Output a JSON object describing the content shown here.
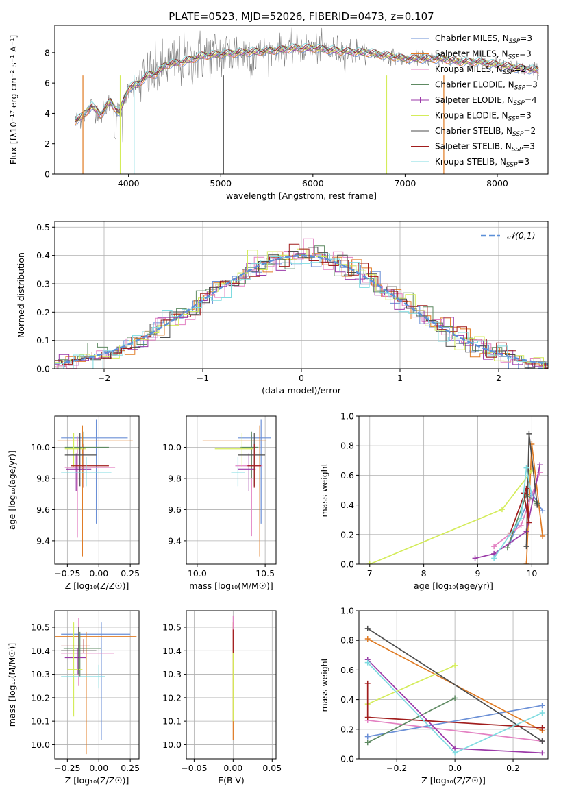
{
  "figure_title": "PLATE=0523, MJD=52026, FIBERID=0473, z=0.107",
  "colors": {
    "chabrier_miles": "#6a8fd6",
    "salpeter_miles": "#e07b24",
    "kroupa_miles": "#e381c2",
    "chabrier_elodie": "#5e8a62",
    "salpeter_elodie": "#9b3aa8",
    "kroupa_elodie": "#d4ec5a",
    "chabrier_stelib": "#4d4d4d",
    "salpeter_stelib": "#a11d1d",
    "kroupa_stelib": "#7fdbe0",
    "data": "#7f7f7f",
    "normal_curve": "#5b8fd8",
    "grid": "#b0b0b0"
  },
  "chart_data": [
    {
      "id": "spectrum",
      "type": "line",
      "title": "PLATE=0523, MJD=52026, FIBERID=0473, z=0.107",
      "xlabel": "wavelength [Angstrom, rest frame]",
      "ylabel": "Flux [fλ10⁻¹⁷ erg cm⁻² s⁻¹ A⁻¹]",
      "xlim": [
        3200,
        8550
      ],
      "ylim": [
        0,
        9.8
      ],
      "xticks": [
        4000,
        5000,
        6000,
        7000,
        8000
      ],
      "yticks": [
        0,
        2,
        4,
        6,
        8
      ],
      "grid": false,
      "legend": "top-right",
      "legend_entries": [
        "Chabrier MILES, NSSP=3",
        "Salpeter MILES, NSSP=3",
        "Kroupa MILES, NSSP=2",
        "Chabrier ELODIE, NSSP=3",
        "Salpeter ELODIE, NSSP=4",
        "Kroupa ELODIE, NSSP=3",
        "Chabrier STELIB, NSSP=2",
        "Salpeter STELIB, NSSP=3",
        "Kroupa STELIB, NSSP=3"
      ],
      "continuum": {
        "x": [
          3400,
          3500,
          3600,
          3700,
          3800,
          3900,
          4000,
          4100,
          4200,
          4300,
          4400,
          4600,
          4800,
          5000,
          5200,
          5500,
          5800,
          6000,
          6300,
          6600,
          6800,
          7000,
          7200,
          7400,
          7600,
          7800,
          8000,
          8200,
          8500
        ],
        "y": [
          3.4,
          3.8,
          4.5,
          3.9,
          4.8,
          4.0,
          5.7,
          5.9,
          6.5,
          6.6,
          7.2,
          7.4,
          7.8,
          7.9,
          8.0,
          8.1,
          8.3,
          8.3,
          8.1,
          8.0,
          7.8,
          7.6,
          7.6,
          7.6,
          7.4,
          7.4,
          7.2,
          7.0,
          6.8
        ]
      }
    },
    {
      "id": "residuals",
      "type": "line",
      "xlabel": "(data-model)/error",
      "ylabel": "Normed distribution",
      "xlim": [
        -2.5,
        2.5
      ],
      "ylim": [
        0,
        0.52
      ],
      "xticks": [
        -2,
        -1,
        0,
        1,
        2
      ],
      "yticks": [
        0.0,
        0.1,
        0.2,
        0.3,
        0.4,
        0.5
      ],
      "grid": true,
      "legend": "top-right",
      "legend_entries": [
        "𝒩(0,1)"
      ],
      "curve": {
        "name": "𝒩(0,1)",
        "mean": 0,
        "std": 1
      }
    },
    {
      "id": "age_vs_Z",
      "type": "scatter",
      "xlabel": "Z [log₁₀(Z/Z☉)]",
      "ylabel": "age  [log₁₀(age/yr)]",
      "xlim": [
        -0.35,
        0.32
      ],
      "ylim": [
        9.25,
        10.2
      ],
      "xticks": [
        -0.25,
        0.0,
        0.25
      ],
      "yticks": [
        9.4,
        9.6,
        9.8,
        10.0
      ],
      "grid": true,
      "points": [
        {
          "x": -0.02,
          "y": 10.06,
          "xerr": [
            0.28,
            0.25
          ],
          "yerr": [
            0.55,
            0.12
          ],
          "color": "chabrier_miles"
        },
        {
          "x": -0.13,
          "y": 10.04,
          "xerr": [
            0.2,
            0.4
          ],
          "yerr": [
            0.74,
            0.1
          ],
          "color": "salpeter_miles"
        },
        {
          "x": -0.17,
          "y": 9.87,
          "xerr": [
            0.1,
            0.3
          ],
          "yerr": [
            0.45,
            0.2
          ],
          "color": "kroupa_miles"
        },
        {
          "x": -0.12,
          "y": 10.0,
          "xerr": [
            0.15,
            0.2
          ],
          "yerr": [
            0.2,
            0.1
          ],
          "color": "chabrier_elodie"
        },
        {
          "x": -0.18,
          "y": 9.86,
          "xerr": [
            0.08,
            0.12
          ],
          "yerr": [
            0.14,
            0.1
          ],
          "color": "salpeter_elodie"
        },
        {
          "x": -0.2,
          "y": 9.99,
          "xerr": [
            0.07,
            0.1
          ],
          "yerr": [
            0.12,
            0.1
          ],
          "color": "kroupa_elodie"
        },
        {
          "x": -0.15,
          "y": 9.95,
          "xerr": [
            0.12,
            0.13
          ],
          "yerr": [
            0.2,
            0.14
          ],
          "color": "chabrier_stelib"
        },
        {
          "x": -0.12,
          "y": 9.88,
          "xerr": [
            0.1,
            0.2
          ],
          "yerr": [
            0.14,
            0.14
          ],
          "color": "salpeter_stelib"
        },
        {
          "x": -0.1,
          "y": 9.84,
          "xerr": [
            0.2,
            0.2
          ],
          "yerr": [
            0.09,
            0.1
          ],
          "color": "kroupa_stelib"
        }
      ]
    },
    {
      "id": "age_vs_mass",
      "type": "scatter",
      "xlabel": "mass [log₁₀(M/M☉)]",
      "xlim": [
        9.92,
        10.58
      ],
      "ylim": [
        9.25,
        10.2
      ],
      "xticks": [
        10.0,
        10.5
      ],
      "yticks": [
        9.4,
        9.6,
        9.8,
        10.0
      ],
      "grid": true,
      "points": [
        {
          "x": 10.47,
          "y": 10.06,
          "xerr": [
            0.17,
            0.07
          ],
          "yerr": [
            0.55,
            0.12
          ],
          "color": "chabrier_miles"
        },
        {
          "x": 10.46,
          "y": 10.04,
          "xerr": [
            0.42,
            0.05
          ],
          "yerr": [
            0.74,
            0.1
          ],
          "color": "salpeter_miles"
        },
        {
          "x": 10.4,
          "y": 9.88,
          "xerr": [
            0.12,
            0.08
          ],
          "yerr": [
            0.45,
            0.2
          ],
          "color": "kroupa_miles"
        },
        {
          "x": 10.4,
          "y": 10.0,
          "xerr": [
            0.08,
            0.05
          ],
          "yerr": [
            0.2,
            0.1
          ],
          "color": "chabrier_elodie"
        },
        {
          "x": 10.38,
          "y": 9.86,
          "xerr": [
            0.08,
            0.05
          ],
          "yerr": [
            0.14,
            0.1
          ],
          "color": "salpeter_elodie"
        },
        {
          "x": 10.33,
          "y": 9.99,
          "xerr": [
            0.2,
            0.08
          ],
          "yerr": [
            0.12,
            0.1
          ],
          "color": "kroupa_elodie"
        },
        {
          "x": 10.42,
          "y": 9.95,
          "xerr": [
            0.12,
            0.08
          ],
          "yerr": [
            0.2,
            0.14
          ],
          "color": "chabrier_stelib"
        },
        {
          "x": 10.42,
          "y": 9.88,
          "xerr": [
            0.05,
            0.05
          ],
          "yerr": [
            0.14,
            0.14
          ],
          "color": "salpeter_stelib"
        },
        {
          "x": 10.3,
          "y": 9.84,
          "xerr": [
            0.05,
            0.05
          ],
          "yerr": [
            0.09,
            0.1
          ],
          "color": "kroupa_stelib"
        }
      ]
    },
    {
      "id": "weight_vs_age",
      "type": "line",
      "xlabel": "age  [log₁₀(age/yr)]",
      "ylabel": "mass weight",
      "xlim": [
        6.8,
        10.3
      ],
      "ylim": [
        0,
        1.0
      ],
      "xticks": [
        7,
        8,
        9,
        10
      ],
      "yticks": [
        0.0,
        0.2,
        0.4,
        0.6,
        0.8,
        1.0
      ],
      "grid": true,
      "series": [
        {
          "color": "chabrier_miles",
          "x": [
            9.6,
            10.0,
            10.2
          ],
          "y": [
            0.15,
            0.48,
            0.36
          ]
        },
        {
          "color": "salpeter_miles",
          "x": [
            9.9,
            10.0,
            10.2
          ],
          "y": [
            0.0,
            0.81,
            0.19
          ]
        },
        {
          "color": "kroupa_miles",
          "x": [
            9.3,
            9.8,
            10.15
          ],
          "y": [
            0.12,
            0.26,
            0.62
          ]
        },
        {
          "color": "chabrier_elodie",
          "x": [
            9.55,
            9.9,
            10.1
          ],
          "y": [
            0.11,
            0.47,
            0.41
          ]
        },
        {
          "color": "salpeter_elodie",
          "x": [
            8.95,
            9.3,
            9.9,
            10.15
          ],
          "y": [
            0.04,
            0.07,
            0.22,
            0.67
          ]
        },
        {
          "color": "kroupa_elodie",
          "x": [
            7.0,
            9.45,
            10.0
          ],
          "y": [
            0.0,
            0.37,
            0.63
          ]
        },
        {
          "color": "chabrier_stelib",
          "x": [
            9.9,
            9.95,
            10.1
          ],
          "y": [
            0.12,
            0.88,
            0.4
          ]
        },
        {
          "color": "salpeter_stelib",
          "x": [
            9.6,
            9.9,
            9.95,
            9.85
          ],
          "y": [
            0.21,
            0.51,
            0.28,
            0.48
          ]
        },
        {
          "color": "kroupa_stelib",
          "x": [
            9.3,
            9.8,
            9.9,
            10.0
          ],
          "y": [
            0.04,
            0.31,
            0.65,
            0.46
          ]
        }
      ]
    },
    {
      "id": "mass_vs_Z",
      "type": "scatter",
      "xlabel": "Z [log₁₀(Z/Z☉)]",
      "ylabel": "mass [log₁₀(M/M☉)]",
      "xlim": [
        -0.35,
        0.32
      ],
      "ylim": [
        9.94,
        10.57
      ],
      "xticks": [
        -0.25,
        0.0,
        0.25
      ],
      "yticks": [
        10.0,
        10.1,
        10.2,
        10.3,
        10.4,
        10.5
      ],
      "grid": true,
      "points": [
        {
          "x": 0.02,
          "y": 10.47,
          "xerr": [
            0.32,
            0.23
          ],
          "yerr": [
            0.45,
            0.05
          ],
          "color": "chabrier_miles"
        },
        {
          "x": -0.1,
          "y": 10.46,
          "xerr": [
            0.25,
            0.4
          ],
          "yerr": [
            0.5,
            0.02
          ],
          "color": "salpeter_miles"
        },
        {
          "x": -0.16,
          "y": 10.39,
          "xerr": [
            0.14,
            0.28
          ],
          "yerr": [
            0.14,
            0.15
          ],
          "color": "kroupa_miles"
        },
        {
          "x": -0.15,
          "y": 10.41,
          "xerr": [
            0.13,
            0.17
          ],
          "yerr": [
            0.12,
            0.07
          ],
          "color": "chabrier_elodie"
        },
        {
          "x": -0.17,
          "y": 10.37,
          "xerr": [
            0.1,
            0.07
          ],
          "yerr": [
            0.07,
            0.04
          ],
          "color": "salpeter_elodie"
        },
        {
          "x": -0.2,
          "y": 10.32,
          "xerr": [
            0.05,
            0.07
          ],
          "yerr": [
            0.2,
            0.2
          ],
          "color": "kroupa_elodie"
        },
        {
          "x": -0.16,
          "y": 10.4,
          "xerr": [
            0.14,
            0.14
          ],
          "yerr": [
            0.1,
            0.1
          ],
          "color": "chabrier_stelib"
        },
        {
          "x": -0.12,
          "y": 10.42,
          "xerr": [
            0.18,
            0.05
          ],
          "yerr": [
            0.03,
            0.03
          ],
          "color": "salpeter_stelib"
        },
        {
          "x": 0.0,
          "y": 10.29,
          "xerr": [
            0.3,
            0.05
          ],
          "yerr": [
            0.05,
            0.05
          ],
          "color": "kroupa_stelib"
        }
      ]
    },
    {
      "id": "mass_vs_ebv",
      "type": "scatter",
      "xlabel": "E(B-V)",
      "xlim": [
        -0.06,
        0.055
      ],
      "ylim": [
        9.94,
        10.57
      ],
      "xticks": [
        -0.05,
        0.0,
        0.05
      ],
      "xtick_labels": [
        "−0.05",
        "0.00",
        "0.05"
      ],
      "yticks": [
        10.0,
        10.1,
        10.2,
        10.3,
        10.4,
        10.5
      ],
      "grid": true,
      "points": [
        {
          "x": 0.0,
          "y": 10.47,
          "xerr": [
            0,
            0
          ],
          "yerr": [
            0.45,
            0.05
          ],
          "color": "salpeter_miles"
        },
        {
          "x": 0.0,
          "y": 10.35,
          "xerr": [
            0,
            0
          ],
          "yerr": [
            0.25,
            0.1
          ],
          "color": "kroupa_elodie"
        },
        {
          "x": 0.0,
          "y": 10.45,
          "xerr": [
            0,
            0
          ],
          "yerr": [
            0.05,
            0.1
          ],
          "color": "kroupa_miles"
        },
        {
          "x": 0.0,
          "y": 10.42,
          "xerr": [
            0,
            0
          ],
          "yerr": [
            0.03,
            0.07
          ],
          "color": "salpeter_stelib"
        }
      ]
    },
    {
      "id": "weight_vs_Z",
      "type": "line",
      "xlabel": "Z [log₁₀(Z/Z☉)]",
      "ylabel": "mass weight",
      "xlim": [
        -0.33,
        0.32
      ],
      "ylim": [
        0,
        1.0
      ],
      "xticks": [
        -0.2,
        0.0,
        0.2
      ],
      "xtick_labels": [
        "−0.2",
        "0.0",
        "0.2"
      ],
      "yticks": [
        0.0,
        0.2,
        0.4,
        0.6,
        0.8,
        1.0
      ],
      "grid": true,
      "series": [
        {
          "color": "chabrier_miles",
          "x": [
            -0.3,
            0.3
          ],
          "y": [
            0.15,
            0.36
          ]
        },
        {
          "color": "salpeter_miles",
          "x": [
            -0.3,
            0.3
          ],
          "y": [
            0.81,
            0.19
          ]
        },
        {
          "color": "kroupa_miles",
          "x": [
            -0.3,
            0.3
          ],
          "y": [
            0.26,
            0.12
          ]
        },
        {
          "color": "chabrier_elodie",
          "x": [
            -0.3,
            0.0
          ],
          "y": [
            0.11,
            0.41
          ]
        },
        {
          "color": "salpeter_elodie",
          "x": [
            -0.3,
            0.0,
            0.3
          ],
          "y": [
            0.67,
            0.07,
            0.04
          ]
        },
        {
          "color": "kroupa_elodie",
          "x": [
            -0.3,
            0.0
          ],
          "y": [
            0.37,
            0.63
          ]
        },
        {
          "color": "chabrier_stelib",
          "x": [
            -0.3,
            0.3
          ],
          "y": [
            0.88,
            0.12
          ]
        },
        {
          "color": "salpeter_stelib",
          "x": [
            -0.3,
            -0.3,
            0.3
          ],
          "y": [
            0.51,
            0.28,
            0.21
          ]
        },
        {
          "color": "kroupa_stelib",
          "x": [
            -0.3,
            0.0,
            0.3
          ],
          "y": [
            0.65,
            0.04,
            0.31
          ]
        }
      ]
    }
  ]
}
